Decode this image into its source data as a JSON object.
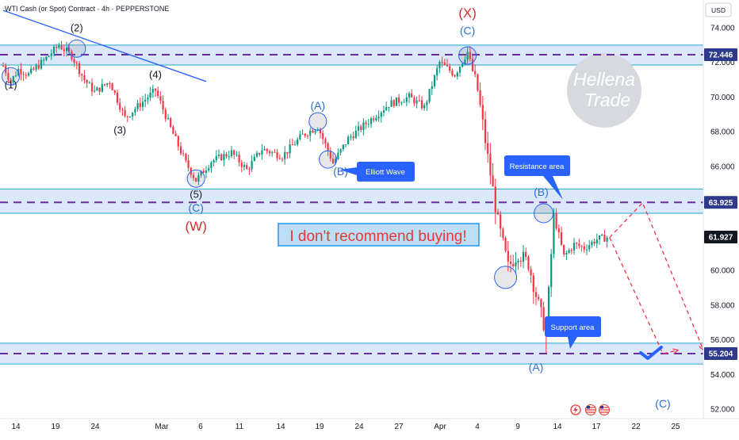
{
  "chart_data": {
    "type": "candlestick",
    "title": "WTI Cash (or Spot) Contract · 4h · PEPPERSTONE",
    "currency": "USD",
    "y_ticks": [
      "74.000",
      "72.000",
      "70.000",
      "68.000",
      "66.000",
      "64.000",
      "62.000",
      "60.000",
      "58.000",
      "56.000",
      "54.000",
      "52.000"
    ],
    "ylim": [
      51.5,
      75.2
    ],
    "x_ticks": [
      "14",
      "19",
      "24",
      "Mar",
      "6",
      "11",
      "14",
      "19",
      "24",
      "27",
      "Apr",
      "4",
      "9",
      "14",
      "17",
      "22",
      "25"
    ],
    "price_badges": [
      {
        "label": "72.446",
        "value": 72.446,
        "color": "#2f3a8c"
      },
      {
        "label": "63.925",
        "value": 63.925,
        "color": "#2f3a8c"
      },
      {
        "label": "61.927",
        "value": 61.927,
        "color": "#131722"
      },
      {
        "label": "55.204",
        "value": 55.204,
        "color": "#2f3a8c"
      }
    ],
    "zones": [
      {
        "name": "upper",
        "top": 73.0,
        "bottom": 71.85
      },
      {
        "name": "resistance",
        "top": 64.7,
        "bottom": 63.3
      },
      {
        "name": "support",
        "top": 55.8,
        "bottom": 54.6
      }
    ],
    "levels": [
      72.446,
      63.925,
      55.204
    ],
    "price_path": [
      {
        "i": 0,
        "v": 71.8
      },
      {
        "i": 3,
        "v": 70.9
      },
      {
        "i": 6,
        "v": 71.6
      },
      {
        "i": 10,
        "v": 71.3
      },
      {
        "i": 16,
        "v": 72.1
      },
      {
        "i": 22,
        "v": 73.0
      },
      {
        "i": 27,
        "v": 72.4
      },
      {
        "i": 32,
        "v": 71.0
      },
      {
        "i": 36,
        "v": 70.3
      },
      {
        "i": 42,
        "v": 70.9
      },
      {
        "i": 48,
        "v": 68.8
      },
      {
        "i": 54,
        "v": 69.6
      },
      {
        "i": 60,
        "v": 70.4
      },
      {
        "i": 66,
        "v": 68.2
      },
      {
        "i": 72,
        "v": 66.2
      },
      {
        "i": 76,
        "v": 65.2
      },
      {
        "i": 82,
        "v": 66.3
      },
      {
        "i": 90,
        "v": 66.8
      },
      {
        "i": 96,
        "v": 65.8
      },
      {
        "i": 102,
        "v": 67.0
      },
      {
        "i": 110,
        "v": 66.6
      },
      {
        "i": 118,
        "v": 67.8
      },
      {
        "i": 124,
        "v": 68.3
      },
      {
        "i": 130,
        "v": 66.2
      },
      {
        "i": 136,
        "v": 67.6
      },
      {
        "i": 144,
        "v": 68.6
      },
      {
        "i": 152,
        "v": 69.6
      },
      {
        "i": 160,
        "v": 70.0
      },
      {
        "i": 166,
        "v": 69.4
      },
      {
        "i": 172,
        "v": 72.0
      },
      {
        "i": 178,
        "v": 71.3
      },
      {
        "i": 183,
        "v": 72.6
      },
      {
        "i": 187,
        "v": 70.4
      },
      {
        "i": 191,
        "v": 66.5
      },
      {
        "i": 195,
        "v": 62.8
      },
      {
        "i": 199,
        "v": 60.2
      },
      {
        "i": 203,
        "v": 61.0
      },
      {
        "i": 207,
        "v": 60.4
      },
      {
        "i": 211,
        "v": 58.0
      },
      {
        "i": 214,
        "v": 56.4
      },
      {
        "i": 217,
        "v": 63.2
      },
      {
        "i": 221,
        "v": 60.8
      },
      {
        "i": 225,
        "v": 61.5
      },
      {
        "i": 229,
        "v": 61.3
      },
      {
        "i": 234,
        "v": 61.8
      },
      {
        "i": 238,
        "v": 61.9
      }
    ],
    "projection_a": [
      [
        239,
        61.9
      ],
      [
        260,
        55.2
      ],
      [
        266,
        55.4
      ]
    ],
    "projection_b": [
      [
        239,
        61.9
      ],
      [
        252,
        63.9
      ],
      [
        276,
        55.4
      ]
    ],
    "trendline": [
      [
        0,
        75.0
      ],
      [
        80,
        70.9
      ]
    ],
    "wave_labels": [
      {
        "text": "(1)",
        "i": 3,
        "v": 70.5,
        "color": "black"
      },
      {
        "text": "(2)",
        "i": 29,
        "v": 73.8,
        "color": "black"
      },
      {
        "text": "(3)",
        "i": 46,
        "v": 67.9,
        "color": "black"
      },
      {
        "text": "(4)",
        "i": 60,
        "v": 71.1,
        "color": "black"
      },
      {
        "text": "(5)",
        "i": 76,
        "v": 64.2,
        "color": "black"
      },
      {
        "text": "(C)",
        "i": 76,
        "v": 63.4,
        "color": "blue"
      },
      {
        "text": "(W)",
        "i": 76,
        "v": 62.3,
        "color": "red"
      },
      {
        "text": "(A)",
        "i": 124,
        "v": 69.3,
        "color": "blue"
      },
      {
        "text": "(B)",
        "i": 133,
        "v": 65.5,
        "color": "blue"
      },
      {
        "text": "(X)",
        "i": 183,
        "v": 74.6,
        "color": "red"
      },
      {
        "text": "(C)",
        "i": 183,
        "v": 73.6,
        "color": "blue"
      },
      {
        "text": "(B)",
        "i": 212,
        "v": 64.3,
        "color": "blue"
      },
      {
        "text": "(A)",
        "i": 210,
        "v": 54.2,
        "color": "blue"
      },
      {
        "text": "(C)",
        "i": 260,
        "v": 52.1,
        "color": "blue"
      }
    ],
    "pivot_circles": [
      {
        "i": 3,
        "v": 71.2
      },
      {
        "i": 29,
        "v": 72.8
      },
      {
        "i": 76,
        "v": 65.3
      },
      {
        "i": 124,
        "v": 68.6
      },
      {
        "i": 128,
        "v": 66.4
      },
      {
        "i": 183,
        "v": 72.4
      },
      {
        "i": 213,
        "v": 63.3
      },
      {
        "i": 198,
        "v": 59.6
      }
    ],
    "callouts": [
      {
        "text": "Elliott Wave"
      },
      {
        "text": "Resistance area"
      },
      {
        "text": "Support area"
      }
    ],
    "annotation": "I don't recommend buying!",
    "watermark": [
      "Hellena",
      "Trade"
    ]
  }
}
